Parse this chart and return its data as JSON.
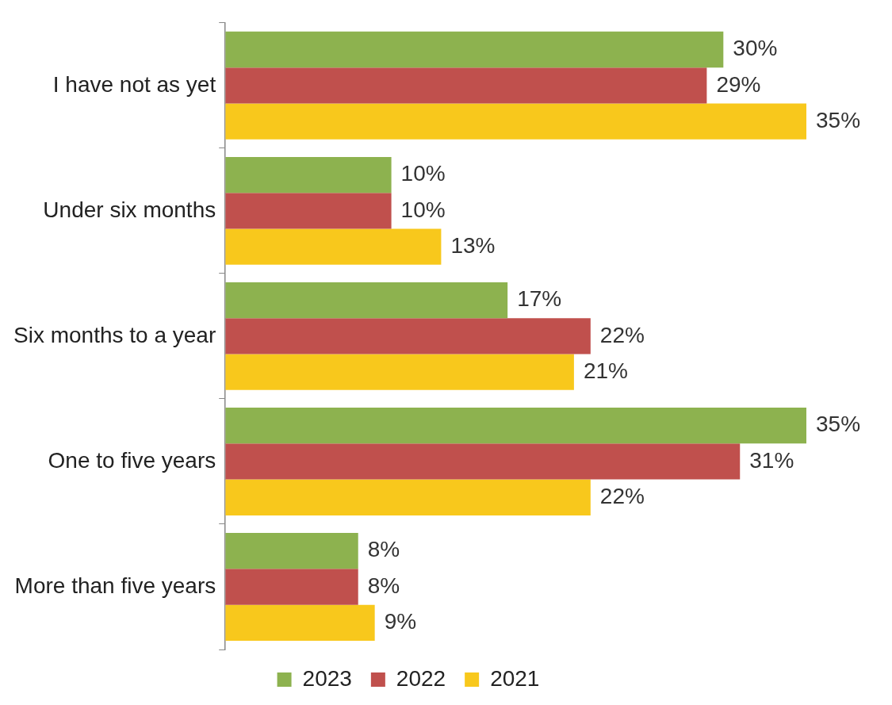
{
  "chart_data": {
    "type": "bar",
    "orientation": "horizontal",
    "legend": "bottom",
    "categories": [
      "I have not as yet",
      "Under six months",
      "Six months to a year",
      "One to five years",
      "More than five years"
    ],
    "series": [
      {
        "name": "2023",
        "color": "#8db24f",
        "values": [
          30,
          10,
          17,
          35,
          8
        ],
        "value_labels": [
          "30%",
          "10%",
          "17%",
          "35%",
          "8%"
        ]
      },
      {
        "name": "2022",
        "color": "#c0504d",
        "values": [
          29,
          10,
          22,
          31,
          8
        ],
        "value_labels": [
          "29%",
          "10%",
          "22%",
          "31%",
          "8%"
        ]
      },
      {
        "name": "2021",
        "color": "#f8c81c",
        "values": [
          35,
          13,
          21,
          22,
          9
        ],
        "value_labels": [
          "35%",
          "13%",
          "21%",
          "22%",
          "9%"
        ]
      }
    ]
  }
}
